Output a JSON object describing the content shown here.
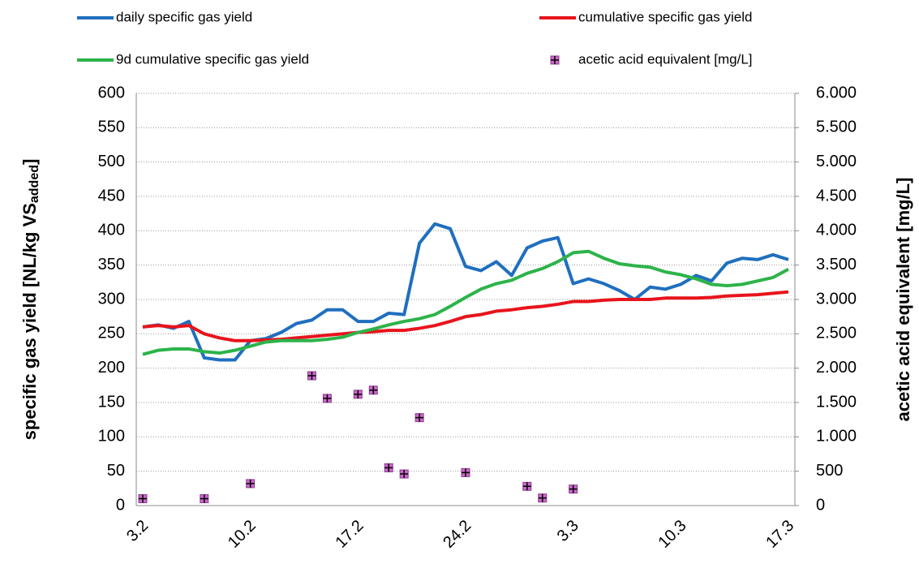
{
  "chart_data": {
    "type": "line",
    "y_label": "specific gas yield [NL/kg  VS",
    "y_label_subscript": "added",
    "y_label_end": "]",
    "y2_label": "acetic acid equivalent [mg/L]",
    "categories": [
      "3.2",
      null,
      null,
      null,
      null,
      null,
      null,
      "10.2",
      null,
      null,
      null,
      null,
      null,
      null,
      "17.2",
      null,
      null,
      null,
      null,
      null,
      null,
      "24.2",
      null,
      null,
      null,
      null,
      null,
      null,
      "3.3",
      null,
      null,
      null,
      null,
      null,
      null,
      "10.3",
      null,
      null,
      null,
      null,
      null,
      null,
      "17.3"
    ],
    "ylim": [
      0,
      600
    ],
    "yticks": [
      0,
      50,
      100,
      150,
      200,
      250,
      300,
      350,
      400,
      450,
      500,
      550,
      600
    ],
    "y2lim": [
      0,
      6000
    ],
    "y2ticks": [
      0,
      500,
      {
        "value": 1000,
        "label": "1.000"
      },
      {
        "value": 1500,
        "label": "1.500"
      },
      {
        "value": 2000,
        "label": "2.000"
      },
      {
        "value": 2500,
        "label": "2.500"
      },
      {
        "value": 3000,
        "label": "3.000"
      },
      {
        "value": 3500,
        "label": "3.500"
      },
      {
        "value": 4000,
        "label": "4.000"
      },
      {
        "value": 4500,
        "label": "4.500"
      },
      {
        "value": 5000,
        "label": "5.000"
      },
      {
        "value": 5500,
        "label": "5.500"
      },
      {
        "value": 6000,
        "label": "6.000"
      }
    ],
    "grid": true,
    "series": [
      {
        "name": "daily specific gas yield",
        "color": "#1f6fbf",
        "style": "line",
        "values": [
          260,
          263,
          258,
          268,
          215,
          212,
          212,
          240,
          243,
          252,
          265,
          270,
          285,
          285,
          268,
          268,
          280,
          278,
          382,
          410,
          403,
          348,
          342,
          355,
          335,
          375,
          385,
          390,
          323,
          330,
          323,
          313,
          300,
          318,
          315,
          322,
          335,
          327,
          353,
          360,
          358,
          365,
          358
        ]
      },
      {
        "name": "cumulative specific gas yield",
        "color": "#e8141c",
        "style": "line",
        "values": [
          260,
          262,
          260,
          262,
          250,
          244,
          240,
          240,
          241,
          242,
          244,
          246,
          248,
          250,
          252,
          253,
          255,
          255,
          258,
          262,
          268,
          275,
          278,
          283,
          285,
          288,
          290,
          293,
          297,
          297,
          299,
          300,
          300,
          300,
          302,
          302,
          302,
          303,
          305,
          306,
          307,
          309,
          311
        ]
      },
      {
        "name": "9d cumulative specific gas yield",
        "color": "#2db34a",
        "style": "line",
        "values": [
          220,
          226,
          228,
          228,
          224,
          222,
          226,
          232,
          238,
          240,
          240,
          240,
          242,
          245,
          252,
          257,
          263,
          268,
          272,
          278,
          290,
          303,
          315,
          323,
          328,
          338,
          345,
          355,
          368,
          370,
          360,
          352,
          349,
          347,
          340,
          336,
          330,
          322,
          320,
          322,
          327,
          332,
          344
        ]
      },
      {
        "name": "acetic acid equivalent [mg/L]",
        "color": "#cc66cc",
        "style": "marker",
        "axis": "y2",
        "values": [
          100,
          null,
          null,
          null,
          100,
          null,
          null,
          320,
          null,
          null,
          null,
          1890,
          1560,
          null,
          1620,
          1680,
          550,
          460,
          1280,
          null,
          null,
          480,
          null,
          null,
          null,
          280,
          110,
          null,
          240,
          null,
          null,
          null,
          null,
          null,
          null,
          null,
          null,
          null,
          null,
          null,
          null,
          null,
          null
        ]
      }
    ]
  }
}
